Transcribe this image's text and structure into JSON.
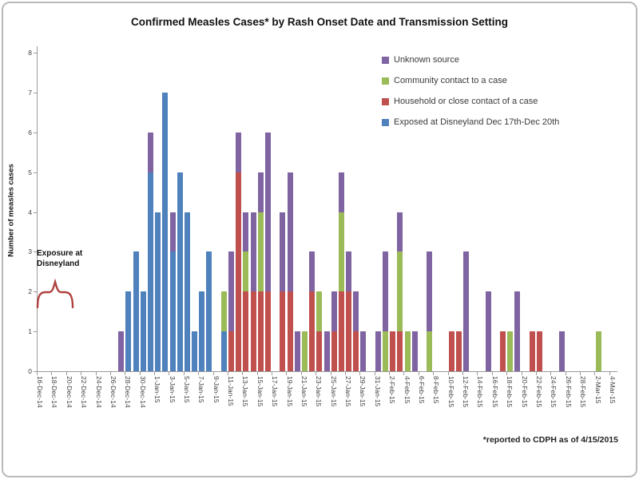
{
  "title": "Confirmed Measles Cases* by Rash Onset Date and Transmission Setting",
  "footnote": "*reported to CDPH as of 4/15/2015",
  "annotation": {
    "line1": "Exposure at",
    "line2": "Disneyland",
    "brace_color": "#b0413e"
  },
  "y_axis": {
    "title": "Number of measles cases",
    "min": 0,
    "max": 8,
    "tick_step": 1,
    "tick_labels": [
      "0",
      "1",
      "2",
      "3",
      "4",
      "5",
      "6",
      "7",
      "8"
    ]
  },
  "x_axis": {
    "label_interval": 2
  },
  "legend_order_top_to_bottom": [
    "Unknown source",
    "Community contact to a case",
    "Household or close contact of a case",
    "Exposed at Disneyland Dec 17th-Dec 20th"
  ],
  "chart_data": {
    "type": "bar",
    "subtype": "stacked",
    "grid": false,
    "legend_position": "top-right",
    "ylim": [
      0,
      8
    ],
    "series": [
      {
        "key": "b",
        "name": "Exposed at Disneyland Dec 17th-Dec 20th",
        "color": "#4F81BD"
      },
      {
        "key": "r",
        "name": "Household or close contact of a case",
        "color": "#C0504D"
      },
      {
        "key": "g",
        "name": "Community contact to a case",
        "color": "#9BBB59"
      },
      {
        "key": "p",
        "name": "Unknown source",
        "color": "#8064A2"
      }
    ],
    "categories_note": "each entry = [date, disneyland, household, community, unknown]",
    "categories": [
      [
        "16-Dec-14",
        0,
        0,
        0,
        0
      ],
      [
        "17-Dec-14",
        0,
        0,
        0,
        0
      ],
      [
        "18-Dec-14",
        0,
        0,
        0,
        0
      ],
      [
        "19-Dec-14",
        0,
        0,
        0,
        0
      ],
      [
        "20-Dec-14",
        0,
        0,
        0,
        0
      ],
      [
        "21-Dec-14",
        0,
        0,
        0,
        0
      ],
      [
        "22-Dec-14",
        0,
        0,
        0,
        0
      ],
      [
        "23-Dec-14",
        0,
        0,
        0,
        0
      ],
      [
        "24-Dec-14",
        0,
        0,
        0,
        0
      ],
      [
        "25-Dec-14",
        0,
        0,
        0,
        0
      ],
      [
        "26-Dec-14",
        0,
        0,
        0,
        0
      ],
      [
        "27-Dec-14",
        0,
        0,
        0,
        1
      ],
      [
        "28-Dec-14",
        2,
        0,
        0,
        0
      ],
      [
        "29-Dec-14",
        3,
        0,
        0,
        0
      ],
      [
        "30-Dec-14",
        2,
        0,
        0,
        0
      ],
      [
        "31-Dec-14",
        5,
        0,
        0,
        1
      ],
      [
        "1-Jan-15",
        4,
        0,
        0,
        0
      ],
      [
        "2-Jan-15",
        7,
        0,
        0,
        0
      ],
      [
        "3-Jan-15",
        3,
        0,
        0,
        1
      ],
      [
        "4-Jan-15",
        5,
        0,
        0,
        0
      ],
      [
        "5-Jan-15",
        4,
        0,
        0,
        0
      ],
      [
        "6-Jan-15",
        1,
        0,
        0,
        0
      ],
      [
        "7-Jan-15",
        2,
        0,
        0,
        0
      ],
      [
        "8-Jan-15",
        3,
        0,
        0,
        0
      ],
      [
        "9-Jan-15",
        0,
        0,
        0,
        0
      ],
      [
        "10-Jan-15",
        1,
        0,
        1,
        0
      ],
      [
        "11-Jan-15",
        0,
        1,
        0,
        2
      ],
      [
        "12-Jan-15",
        0,
        5,
        0,
        1
      ],
      [
        "13-Jan-15",
        0,
        2,
        1,
        1
      ],
      [
        "14-Jan-15",
        0,
        2,
        0,
        2
      ],
      [
        "15-Jan-15",
        0,
        2,
        2,
        1
      ],
      [
        "16-Jan-15",
        0,
        2,
        0,
        4
      ],
      [
        "17-Jan-15",
        0,
        0,
        0,
        0
      ],
      [
        "18-Jan-15",
        0,
        2,
        0,
        2
      ],
      [
        "19-Jan-15",
        0,
        2,
        0,
        3
      ],
      [
        "20-Jan-15",
        0,
        0,
        0,
        1
      ],
      [
        "21-Jan-15",
        0,
        0,
        1,
        0
      ],
      [
        "22-Jan-15",
        0,
        2,
        0,
        1
      ],
      [
        "23-Jan-15",
        0,
        1,
        1,
        0
      ],
      [
        "24-Jan-15",
        0,
        0,
        0,
        1
      ],
      [
        "25-Jan-15",
        0,
        1,
        0,
        1
      ],
      [
        "26-Jan-15",
        0,
        2,
        2,
        1
      ],
      [
        "27-Jan-15",
        0,
        2,
        0,
        1
      ],
      [
        "28-Jan-15",
        0,
        1,
        0,
        1
      ],
      [
        "29-Jan-15",
        0,
        0,
        0,
        1
      ],
      [
        "30-Jan-15",
        0,
        0,
        0,
        0
      ],
      [
        "31-Jan-15",
        0,
        0,
        0,
        1
      ],
      [
        "1-Feb-15",
        0,
        0,
        1,
        2
      ],
      [
        "2-Feb-15",
        0,
        1,
        0,
        0
      ],
      [
        "3-Feb-15",
        0,
        1,
        2,
        1
      ],
      [
        "4-Feb-15",
        0,
        0,
        1,
        0
      ],
      [
        "5-Feb-15",
        0,
        0,
        0,
        1
      ],
      [
        "6-Feb-15",
        0,
        0,
        0,
        0
      ],
      [
        "7-Feb-15",
        0,
        0,
        1,
        2
      ],
      [
        "8-Feb-15",
        0,
        0,
        0,
        0
      ],
      [
        "9-Feb-15",
        0,
        0,
        0,
        0
      ],
      [
        "10-Feb-15",
        0,
        1,
        0,
        0
      ],
      [
        "11-Feb-15",
        0,
        1,
        0,
        0
      ],
      [
        "12-Feb-15",
        0,
        0,
        0,
        3
      ],
      [
        "13-Feb-15",
        0,
        0,
        0,
        0
      ],
      [
        "14-Feb-15",
        0,
        0,
        0,
        0
      ],
      [
        "15-Feb-15",
        0,
        0,
        0,
        2
      ],
      [
        "16-Feb-15",
        0,
        0,
        0,
        0
      ],
      [
        "17-Feb-15",
        0,
        1,
        0,
        0
      ],
      [
        "18-Feb-15",
        0,
        0,
        1,
        0
      ],
      [
        "19-Feb-15",
        0,
        0,
        0,
        2
      ],
      [
        "20-Feb-15",
        0,
        0,
        0,
        0
      ],
      [
        "21-Feb-15",
        0,
        1,
        0,
        0
      ],
      [
        "22-Feb-15",
        0,
        1,
        0,
        0
      ],
      [
        "23-Feb-15",
        0,
        0,
        0,
        0
      ],
      [
        "24-Feb-15",
        0,
        0,
        0,
        0
      ],
      [
        "25-Feb-15",
        0,
        0,
        0,
        1
      ],
      [
        "26-Feb-15",
        0,
        0,
        0,
        0
      ],
      [
        "27-Feb-15",
        0,
        0,
        0,
        0
      ],
      [
        "28-Feb-15",
        0,
        0,
        0,
        0
      ],
      [
        "1-Mar-15",
        0,
        0,
        0,
        0
      ],
      [
        "2-Mar-15",
        0,
        0,
        1,
        0
      ],
      [
        "3-Mar-15",
        0,
        0,
        0,
        0
      ],
      [
        "4-Mar-15",
        0,
        0,
        0,
        0
      ]
    ],
    "title": "Confirmed Measles Cases* by Rash Onset Date and Transmission Setting",
    "xlabel": "",
    "ylabel": "Number of measles cases"
  }
}
